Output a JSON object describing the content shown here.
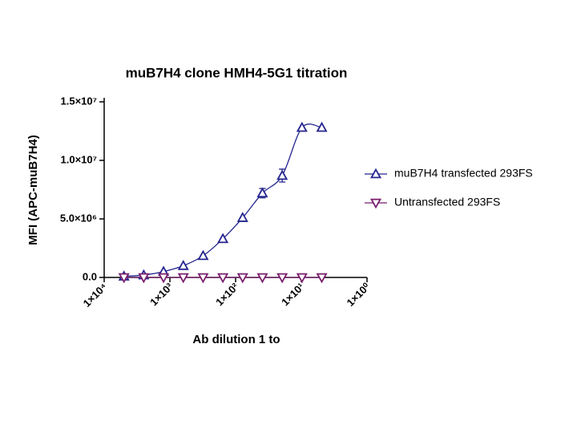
{
  "chart_data": {
    "type": "scatter",
    "title": "muB7H4 clone HMH4-5G1 titration",
    "x_label": "Ab dilution 1 to",
    "y_label": "MFI (APC-muB7H4)",
    "x_scale": "log",
    "x_reversed": true,
    "xlim": [
      10000,
      1
    ],
    "xticks": [
      {
        "value": 10000,
        "label": "1×10⁴"
      },
      {
        "value": 1000,
        "label": "1×10³"
      },
      {
        "value": 100,
        "label": "1×10²"
      },
      {
        "value": 10,
        "label": "1×10¹"
      },
      {
        "value": 1,
        "label": "1×10⁰"
      }
    ],
    "ylim": [
      0,
      15000000
    ],
    "yticks": [
      {
        "value": 0,
        "label": "0.0"
      },
      {
        "value": 5000000,
        "label": "5.0×10⁶"
      },
      {
        "value": 10000000,
        "label": "1.0×10⁷"
      },
      {
        "value": 15000000,
        "label": "1.5×10⁷"
      }
    ],
    "x": [
      5000,
      2500,
      1250,
      625,
      312.5,
      156.25,
      78.13,
      39.06,
      19.53,
      9.77,
      4.88
    ],
    "series": [
      {
        "name": "muB7H4 transfected 293FS",
        "color": "#25258f",
        "marker": "triangle-up",
        "values": [
          100000,
          200000,
          500000,
          1000000,
          1850000,
          3300000,
          5100000,
          7200000,
          8700000,
          12800000,
          12800000
        ],
        "errors": [
          0,
          0,
          0,
          0,
          0,
          0,
          0,
          400000,
          550000,
          0,
          0
        ]
      },
      {
        "name": "Untransfected 293FS",
        "color": "#7a1f6e",
        "marker": "triangle-down",
        "values": [
          0,
          0,
          0,
          0,
          0,
          0,
          0,
          0,
          0,
          0,
          0
        ]
      }
    ]
  }
}
